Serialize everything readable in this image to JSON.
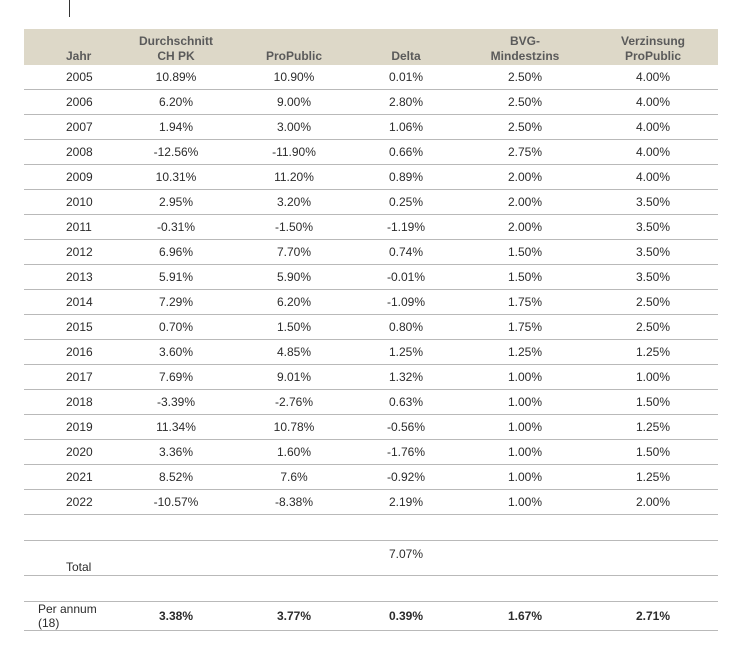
{
  "headers": {
    "year": "Jahr",
    "avg_line1": "Durchschnitt",
    "avg_line2": "CH PK",
    "propublic": "ProPublic",
    "delta": "Delta",
    "bvg_line1": "BVG-",
    "bvg_line2": "Mindestzins",
    "verz_line1": "Verzinsung",
    "verz_line2": "ProPublic"
  },
  "rows": [
    [
      "2005",
      "10.89%",
      "10.90%",
      "0.01%",
      "2.50%",
      "4.00%"
    ],
    [
      "2006",
      "6.20%",
      "9.00%",
      "2.80%",
      "2.50%",
      "4.00%"
    ],
    [
      "2007",
      "1.94%",
      "3.00%",
      "1.06%",
      "2.50%",
      "4.00%"
    ],
    [
      "2008",
      "-12.56%",
      "-11.90%",
      "0.66%",
      "2.75%",
      "4.00%"
    ],
    [
      "2009",
      "10.31%",
      "11.20%",
      "0.89%",
      "2.00%",
      "4.00%"
    ],
    [
      "2010",
      "2.95%",
      "3.20%",
      "0.25%",
      "2.00%",
      "3.50%"
    ],
    [
      "2011",
      "-0.31%",
      "-1.50%",
      "-1.19%",
      "2.00%",
      "3.50%"
    ],
    [
      "2012",
      "6.96%",
      "7.70%",
      "0.74%",
      "1.50%",
      "3.50%"
    ],
    [
      "2013",
      "5.91%",
      "5.90%",
      "-0.01%",
      "1.50%",
      "3.50%"
    ],
    [
      "2014",
      "7.29%",
      "6.20%",
      "-1.09%",
      "1.75%",
      "2.50%"
    ],
    [
      "2015",
      "0.70%",
      "1.50%",
      "0.80%",
      "1.75%",
      "2.50%"
    ],
    [
      "2016",
      "3.60%",
      "4.85%",
      "1.25%",
      "1.25%",
      "1.25%"
    ],
    [
      "2017",
      "7.69%",
      "9.01%",
      "1.32%",
      "1.00%",
      "1.00%"
    ],
    [
      "2018",
      "-3.39%",
      "-2.76%",
      "0.63%",
      "1.00%",
      "1.50%"
    ],
    [
      "2019",
      "11.34%",
      "10.78%",
      "-0.56%",
      "1.00%",
      "1.25%"
    ],
    [
      "2020",
      "3.36%",
      "1.60%",
      "-1.76%",
      "1.00%",
      "1.50%"
    ],
    [
      "2021",
      "8.52%",
      "7.6%",
      "-0.92%",
      "1.00%",
      "1.25%"
    ],
    [
      "2022",
      "-10.57%",
      "-8.38%",
      "2.19%",
      "1.00%",
      "2.00%"
    ]
  ],
  "total": {
    "label": "Total",
    "delta": "7.07%"
  },
  "per_annum": {
    "label": "Per annum (18)",
    "avg": "3.38%",
    "propublic": "3.77%",
    "delta": "0.39%",
    "bvg": "1.67%",
    "verz": "2.71%"
  }
}
